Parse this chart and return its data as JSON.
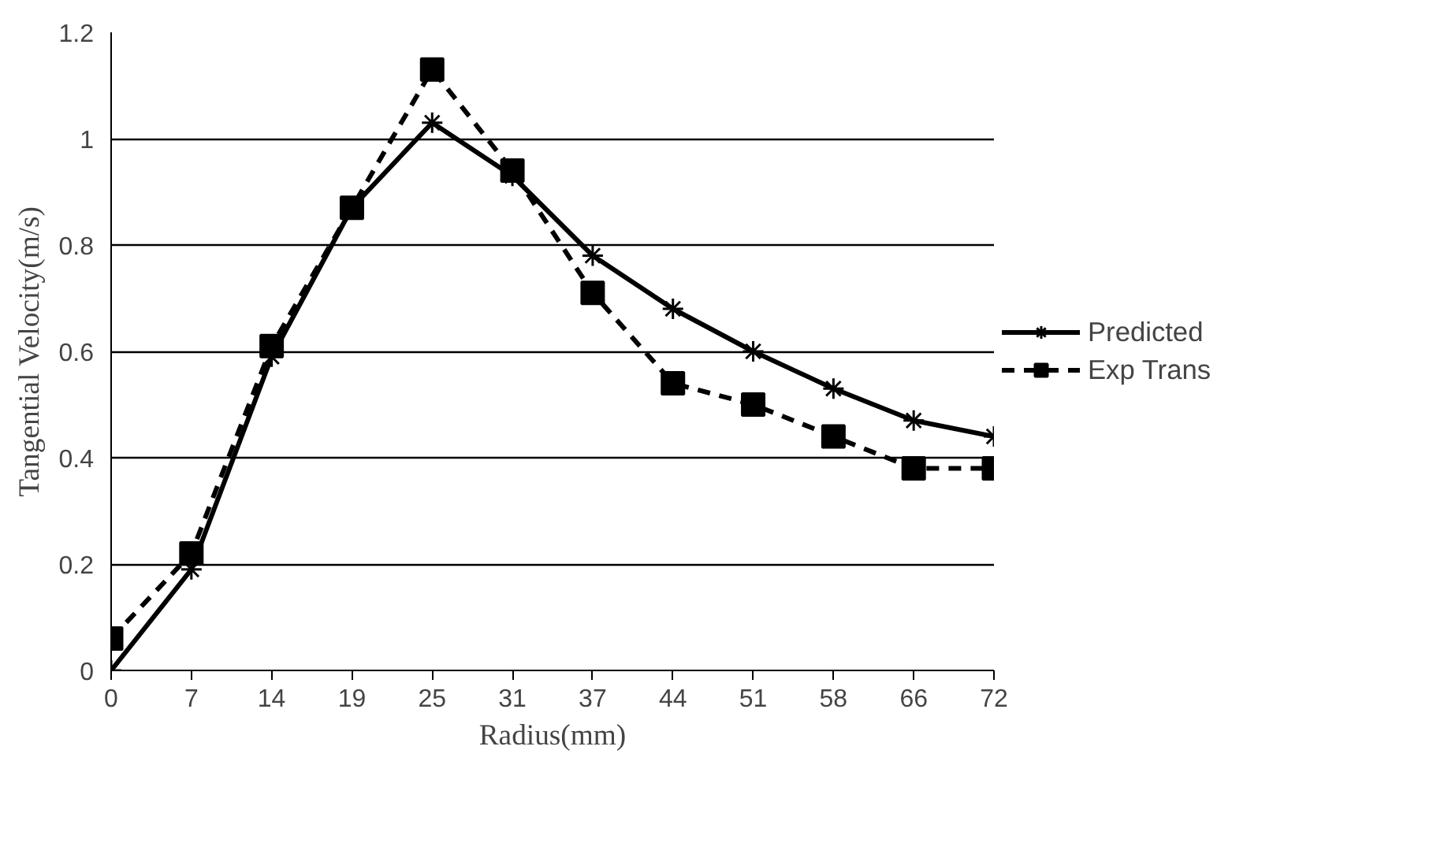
{
  "chart_data": {
    "type": "line",
    "xlabel": "Radius(mm)",
    "ylabel": "Tangential Velocity(m/s)",
    "categories": [
      "0",
      "7",
      "14",
      "19",
      "25",
      "31",
      "37",
      "44",
      "51",
      "58",
      "66",
      "72"
    ],
    "series": [
      {
        "name": "Predicted",
        "color": "#000000",
        "marker": "cross",
        "line_style": "solid",
        "values": [
          0,
          0.19,
          0.59,
          0.87,
          1.03,
          0.93,
          0.78,
          0.68,
          0.6,
          0.53,
          0.47,
          0.44
        ]
      },
      {
        "name": "Exp Trans",
        "color": "#000000",
        "marker": "square",
        "line_style": "dashed",
        "values": [
          0.06,
          0.22,
          0.61,
          0.87,
          1.13,
          0.94,
          0.71,
          0.54,
          0.5,
          0.44,
          0.38,
          0.38
        ]
      }
    ],
    "ylim": [
      0,
      1.2
    ],
    "yticks": [
      0,
      {
        "value": 0.2,
        "label": "0.2"
      },
      {
        "value": 0.4,
        "label": "0.4"
      },
      {
        "value": 0.6,
        "label": "0.6"
      },
      {
        "value": 0.8,
        "label": "0.8"
      },
      1,
      {
        "value": 1.2,
        "label": "1.2"
      }
    ],
    "grid": "y",
    "legend": "right"
  }
}
